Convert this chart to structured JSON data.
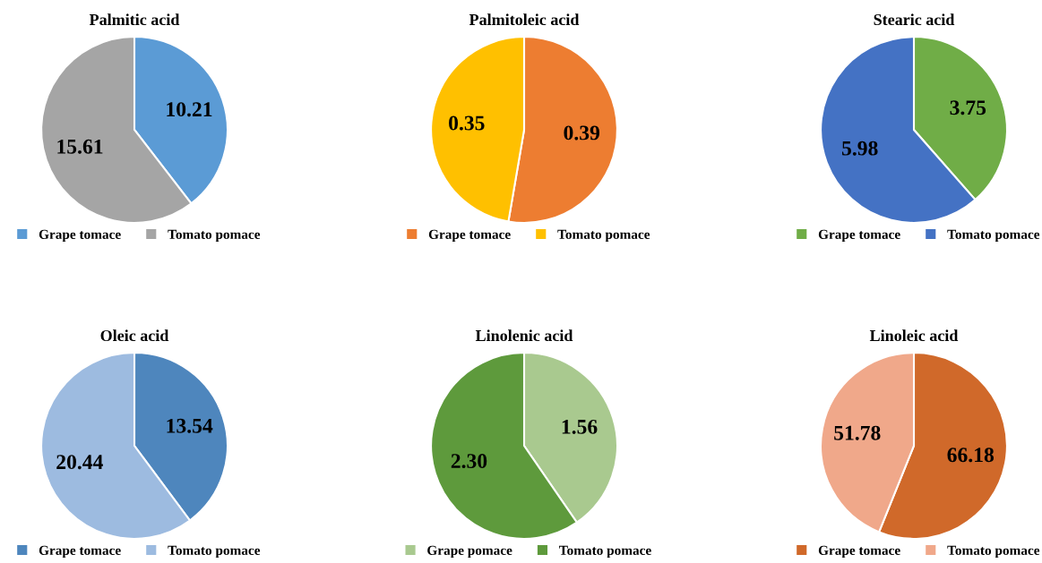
{
  "chart_data": [
    {
      "type": "pie",
      "title": "Palmitic acid",
      "categories": [
        "Grape tomace",
        "Tomato pomace"
      ],
      "values": [
        10.21,
        15.61
      ],
      "colors": [
        "#5b9bd5",
        "#a5a5a5"
      ],
      "data_labels": true,
      "legend": "bottom"
    },
    {
      "type": "pie",
      "title": "Palmitoleic acid",
      "categories": [
        "Grape tomace",
        "Tomato pomace"
      ],
      "values": [
        0.39,
        0.35
      ],
      "colors": [
        "#ed7d31",
        "#ffc000"
      ],
      "data_labels": true,
      "legend": "bottom"
    },
    {
      "type": "pie",
      "title": "Stearic acid",
      "categories": [
        "Grape tomace",
        "Tomato pomace"
      ],
      "values": [
        3.75,
        5.98
      ],
      "colors": [
        "#70ad47",
        "#4472c4"
      ],
      "data_labels": true,
      "legend": "bottom"
    },
    {
      "type": "pie",
      "title": "Oleic acid",
      "categories": [
        "Grape tomace",
        "Tomato pomace"
      ],
      "values": [
        13.54,
        20.44
      ],
      "colors": [
        "#4e86bd",
        "#9dbbe0"
      ],
      "data_labels": true,
      "legend": "bottom"
    },
    {
      "type": "pie",
      "title": "Linolenic acid",
      "categories": [
        "Grape pomace",
        "Tomato pomace"
      ],
      "values": [
        1.56,
        2.3
      ],
      "colors": [
        "#a9c98f",
        "#5e9a3c"
      ],
      "value_labels": [
        "1.56",
        "2.30"
      ],
      "legend": "bottom"
    },
    {
      "type": "pie",
      "title": "Linoleic acid",
      "categories": [
        "Grape tomace",
        "Tomato pomace"
      ],
      "values": [
        66.18,
        51.78
      ],
      "colors": [
        "#d0692a",
        "#f0a88a"
      ],
      "data_labels": true,
      "legend": "bottom"
    }
  ]
}
